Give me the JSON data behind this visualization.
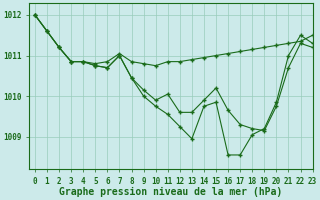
{
  "title": "Graphe pression niveau de la mer (hPa)",
  "bg_color": "#cceaea",
  "line_color": "#1a6b1a",
  "grid_color": "#99ccbb",
  "xlim": [
    -0.5,
    23
  ],
  "ylim": [
    1008.2,
    1012.3
  ],
  "yticks": [
    1009,
    1010,
    1011,
    1012
  ],
  "xticks": [
    0,
    1,
    2,
    3,
    4,
    5,
    6,
    7,
    8,
    9,
    10,
    11,
    12,
    13,
    14,
    15,
    16,
    17,
    18,
    19,
    20,
    21,
    22,
    23
  ],
  "series": [
    [
      1012.0,
      1011.6,
      1011.2,
      1010.85,
      1010.85,
      1010.8,
      1010.85,
      1011.05,
      1010.85,
      1010.8,
      1010.75,
      1010.85,
      1010.85,
      1010.9,
      1010.95,
      1011.0,
      1011.05,
      1011.1,
      1011.15,
      1011.2,
      1011.25,
      1011.3,
      1011.35,
      1011.5
    ],
    [
      1012.0,
      1011.6,
      1011.2,
      1010.85,
      1010.85,
      1010.75,
      1010.7,
      1011.0,
      1010.45,
      1010.0,
      1009.75,
      1009.55,
      1009.25,
      1008.95,
      1009.75,
      1009.85,
      1008.55,
      1008.55,
      1009.05,
      1009.2,
      1009.85,
      1011.0,
      1011.5,
      1011.3
    ],
    [
      1012.0,
      1011.6,
      1011.2,
      1010.85,
      1010.85,
      1010.75,
      1010.7,
      1011.0,
      1010.45,
      1010.15,
      1009.9,
      1010.05,
      1009.6,
      1009.6,
      1009.9,
      1010.2,
      1009.65,
      1009.3,
      1009.2,
      1009.15,
      1009.75,
      1010.7,
      1011.3,
      1011.2
    ]
  ],
  "title_fontsize": 7,
  "tick_fontsize": 5.5
}
